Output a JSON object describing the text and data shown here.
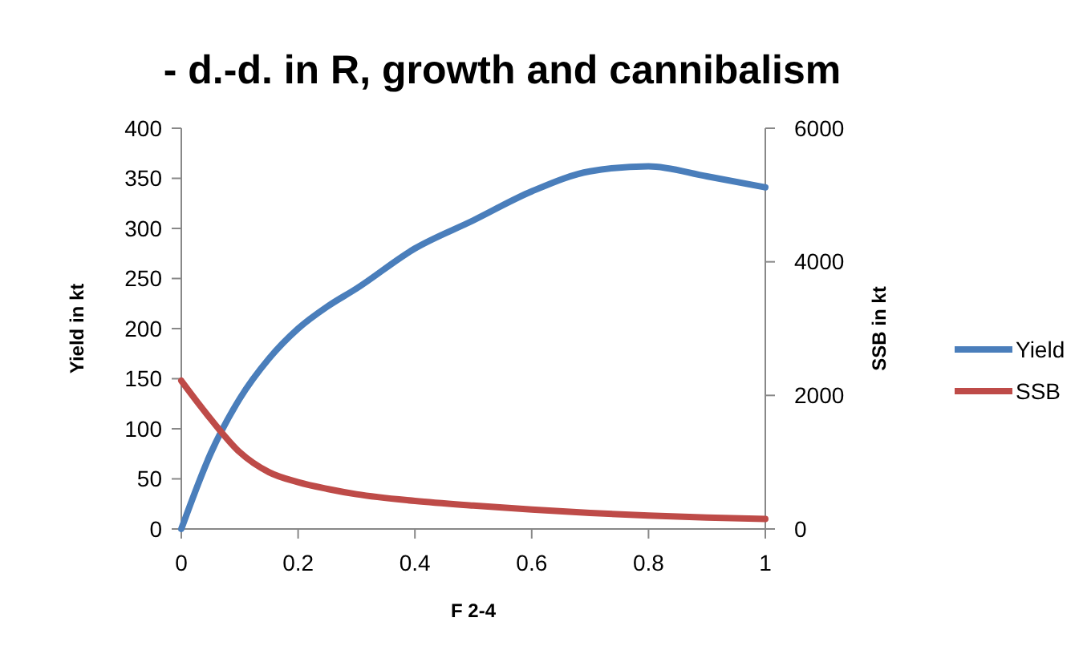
{
  "chart_data": {
    "type": "line",
    "title": "-  d.-d. in R, growth and cannibalism",
    "xlabel": "F 2-4",
    "ylabel": "Yield in kt",
    "y2label": "SSB in kt",
    "x": [
      0,
      0.05,
      0.1,
      0.15,
      0.2,
      0.25,
      0.3,
      0.4,
      0.5,
      0.6,
      0.7,
      0.8,
      0.9,
      1
    ],
    "series": [
      {
        "name": "Yield",
        "color": "#4a7ebb",
        "values": [
          0,
          75,
          130,
          170,
          200,
          222,
          240,
          280,
          308,
          337,
          357,
          362,
          352,
          341
        ]
      },
      {
        "name": "SSB",
        "color": "#be4b48",
        "axis": "y2",
        "values": [
          2220,
          1650,
          1150,
          850,
          700,
          600,
          520,
          420,
          350,
          290,
          240,
          200,
          170,
          150
        ]
      }
    ],
    "xlim": [
      0,
      1
    ],
    "xticks": [
      0,
      0.2,
      0.4,
      0.6,
      0.8,
      {
        "value": 1,
        "label": "1"
      }
    ],
    "ylim": [
      0,
      400
    ],
    "yticks": [
      0,
      50,
      100,
      150,
      200,
      250,
      300,
      350,
      400
    ],
    "y2lim": [
      0,
      6000
    ],
    "y2ticks": [
      0,
      2000,
      4000,
      6000
    ],
    "legend": "right",
    "grid": false,
    "marker": "none",
    "line_style": "solid"
  }
}
